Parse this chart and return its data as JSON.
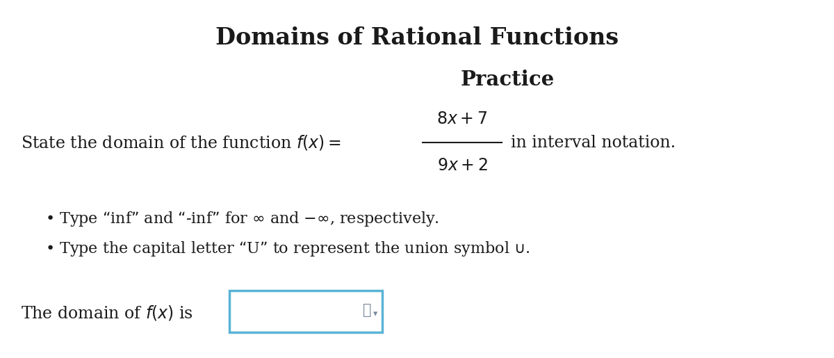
{
  "title": "Domains of Rational Functions",
  "subtitle": "Practice",
  "bg_color": "#ffffff",
  "text_color": "#1a1a1a",
  "box_border_color": "#5ab4d6",
  "title_fontsize": 24,
  "subtitle_fontsize": 21,
  "body_fontsize": 17,
  "bullet_fontsize": 16,
  "fig_width": 12.0,
  "fig_height": 5.15,
  "dpi": 100
}
